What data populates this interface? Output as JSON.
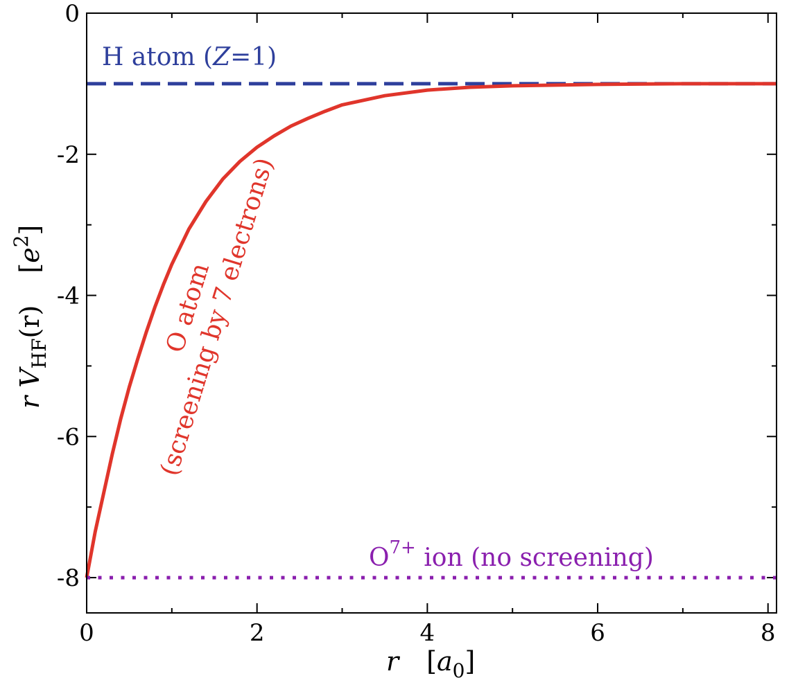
{
  "chart_data": {
    "type": "line",
    "xlim": [
      0,
      8.1
    ],
    "ylim": [
      -8.5,
      0
    ],
    "x_ticks": [
      "0",
      "2",
      "4",
      "6",
      "8"
    ],
    "y_ticks": [
      "0",
      "-2",
      "-4",
      "-6",
      "-8"
    ],
    "xlabel": {
      "var": "r",
      "unit_open": "[",
      "unit_base": "a",
      "unit_sub": "0",
      "unit_close": "]"
    },
    "ylabel": {
      "pre": "r V",
      "sub": "HF",
      "post": "(r)",
      "unit_open": "[",
      "unit_base": "e",
      "unit_sup": "2",
      "unit_close": "]"
    },
    "series": [
      {
        "name": "H atom (Z=1)",
        "label_parts": {
          "pre": "H atom (",
          "italic": "Z",
          "post": "=1)"
        },
        "style": "dashed",
        "color": "#2e3f9c",
        "x": [
          0,
          8.1
        ],
        "y": [
          -1,
          -1
        ]
      },
      {
        "name": "O atom (screening by 7 electrons)",
        "label_line1": "O atom",
        "label_line2": "(screening by 7 electrons)",
        "style": "solid",
        "color": "#e0352b",
        "x": [
          0,
          0.1,
          0.2,
          0.3,
          0.4,
          0.5,
          0.6,
          0.7,
          0.8,
          0.9,
          1.0,
          1.2,
          1.4,
          1.6,
          1.8,
          2.0,
          2.2,
          2.4,
          2.6,
          2.8,
          3.0,
          3.5,
          4.0,
          4.5,
          5.0,
          5.5,
          6.0,
          7.0,
          8.1
        ],
        "y": [
          -8.0,
          -7.35,
          -6.8,
          -6.25,
          -5.75,
          -5.3,
          -4.9,
          -4.52,
          -4.17,
          -3.85,
          -3.56,
          -3.06,
          -2.67,
          -2.35,
          -2.1,
          -1.9,
          -1.74,
          -1.6,
          -1.49,
          -1.39,
          -1.3,
          -1.17,
          -1.09,
          -1.05,
          -1.03,
          -1.02,
          -1.01,
          -1.0,
          -1.0
        ]
      },
      {
        "name": "O7+ ion (no screening)",
        "label_parts": {
          "pre": "O",
          "sup": "7+",
          "post": " ion (no screening)"
        },
        "style": "dotted",
        "color": "#8a1fae",
        "x": [
          0,
          8.1
        ],
        "y": [
          -8,
          -8
        ]
      }
    ],
    "grid": false,
    "legend": "none"
  }
}
